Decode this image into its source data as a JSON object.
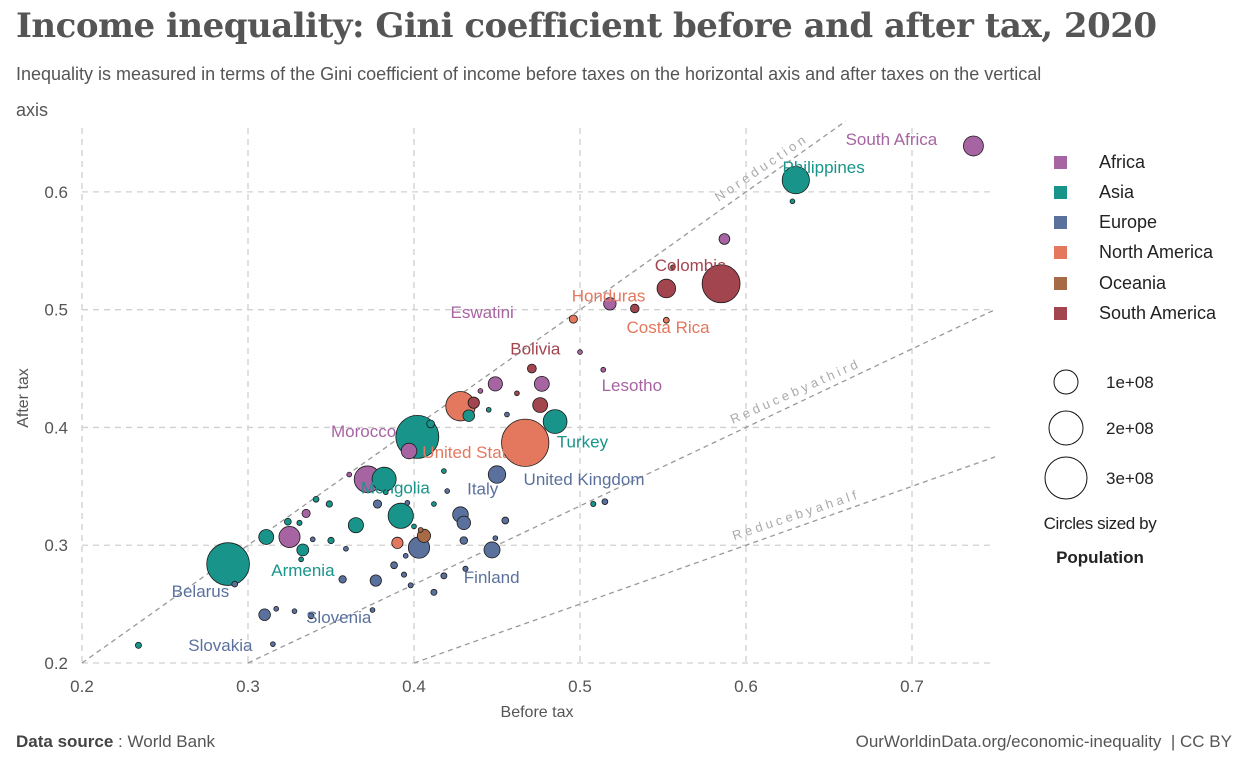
{
  "title": "Income inequality: Gini coefficient before and after tax, 2020",
  "subtitle": "Inequality is measured in terms of the Gini coefficient of income before taxes on the horizontal axis and after taxes on the vertical axis",
  "footer": {
    "source_label": "Data source",
    "source_sep": " : ",
    "source_value": "World Bank",
    "url": "OurWorldinData.org/economic-inequality",
    "sep": "|",
    "license": "CC BY"
  },
  "legend": {
    "regions": [
      "Africa",
      "Asia",
      "Europe",
      "North America",
      "Oceania",
      "South America"
    ],
    "size_values": [
      "1e+08",
      "2e+08",
      "3e+08"
    ],
    "size_title": "Circles sized by",
    "size_title_bold": "Population"
  },
  "chart_data": {
    "type": "scatter",
    "xlabel": "Before tax",
    "ylabel": "After tax",
    "xlim": [
      0.2,
      0.75
    ],
    "ylim": [
      0.2,
      0.65
    ],
    "x_ticks": [
      "0.2",
      "0.3",
      "0.4",
      "0.5",
      "0.6",
      "0.7"
    ],
    "y_ticks": [
      "0.2",
      "0.3",
      "0.4",
      "0.5",
      "0.6"
    ],
    "grid": true,
    "legend_position": "right",
    "colors": {
      "Africa": "#a764a3",
      "Asia": "#18948a",
      "Europe": "#5b719d",
      "North America": "#e3785f",
      "Oceania": "#a76a47",
      "South America": "#a2454f"
    },
    "reference_lines": [
      {
        "label": "N o   r e d u c t i o n",
        "slope": 1.0
      },
      {
        "label": "R e d u c e   b y   a   t h i r d",
        "slope": 0.6667
      },
      {
        "label": "R e d u c e   b y   a   h a l f",
        "slope": 0.5
      }
    ],
    "labels": [
      {
        "text": "South Africa",
        "region": "Africa",
        "x": 0.66,
        "y": 0.64
      },
      {
        "text": "Philippines",
        "region": "Asia",
        "x": 0.622,
        "y": 0.616
      },
      {
        "text": "Colombia",
        "region": "South America",
        "x": 0.545,
        "y": 0.533
      },
      {
        "text": "Honduras",
        "region": "North America",
        "x": 0.495,
        "y": 0.507
      },
      {
        "text": "Eswatini",
        "region": "Africa",
        "x": 0.422,
        "y": 0.493
      },
      {
        "text": "Costa Rica",
        "region": "North America",
        "x": 0.528,
        "y": 0.48
      },
      {
        "text": "Bolivia",
        "region": "South America",
        "x": 0.458,
        "y": 0.462
      },
      {
        "text": "Lesotho",
        "region": "Africa",
        "x": 0.513,
        "y": 0.431
      },
      {
        "text": "Morocco",
        "region": "Africa",
        "x": 0.35,
        "y": 0.392
      },
      {
        "text": "Turkey",
        "region": "Asia",
        "x": 0.486,
        "y": 0.383
      },
      {
        "text": "United States",
        "region": "North America",
        "x": 0.405,
        "y": 0.374
      },
      {
        "text": "United Kingdom",
        "region": "Europe",
        "x": 0.466,
        "y": 0.351
      },
      {
        "text": "Mongolia",
        "region": "Asia",
        "x": 0.368,
        "y": 0.344
      },
      {
        "text": "Italy",
        "region": "Europe",
        "x": 0.432,
        "y": 0.343
      },
      {
        "text": "Armenia",
        "region": "Asia",
        "x": 0.314,
        "y": 0.274
      },
      {
        "text": "Finland",
        "region": "Europe",
        "x": 0.43,
        "y": 0.268
      },
      {
        "text": "Belarus",
        "region": "Europe",
        "x": 0.254,
        "y": 0.256
      },
      {
        "text": "Slovenia",
        "region": "Europe",
        "x": 0.335,
        "y": 0.234
      },
      {
        "text": "Slovakia",
        "region": "Europe",
        "x": 0.264,
        "y": 0.21
      }
    ],
    "points": [
      {
        "x": 0.737,
        "y": 0.639,
        "pop": 59000000,
        "region": "Africa"
      },
      {
        "x": 0.63,
        "y": 0.61,
        "pop": 110000000,
        "region": "Asia"
      },
      {
        "x": 0.628,
        "y": 0.592,
        "pop": 700000,
        "region": "Asia"
      },
      {
        "x": 0.587,
        "y": 0.56,
        "pop": 17000000,
        "region": "Africa"
      },
      {
        "x": 0.585,
        "y": 0.522,
        "pop": 213000000,
        "region": "South America"
      },
      {
        "x": 0.552,
        "y": 0.518,
        "pop": 51000000,
        "region": "South America"
      },
      {
        "x": 0.556,
        "y": 0.536,
        "pop": 500000,
        "region": "South America"
      },
      {
        "x": 0.518,
        "y": 0.505,
        "pop": 23000000,
        "region": "Africa"
      },
      {
        "x": 0.533,
        "y": 0.501,
        "pop": 11000000,
        "region": "South America"
      },
      {
        "x": 0.496,
        "y": 0.492,
        "pop": 9900000,
        "region": "North America"
      },
      {
        "x": 0.552,
        "y": 0.491,
        "pop": 5100000,
        "region": "North America"
      },
      {
        "x": 0.5,
        "y": 0.464,
        "pop": 1200000,
        "region": "Africa"
      },
      {
        "x": 0.471,
        "y": 0.45,
        "pop": 11700000,
        "region": "South America"
      },
      {
        "x": 0.514,
        "y": 0.449,
        "pop": 2100000,
        "region": "Africa"
      },
      {
        "x": 0.449,
        "y": 0.437,
        "pop": 30000000,
        "region": "Africa"
      },
      {
        "x": 0.477,
        "y": 0.437,
        "pop": 33000000,
        "region": "Africa"
      },
      {
        "x": 0.44,
        "y": 0.431,
        "pop": 3000000,
        "region": "Africa"
      },
      {
        "x": 0.462,
        "y": 0.429,
        "pop": 600000,
        "region": "South America"
      },
      {
        "x": 0.476,
        "y": 0.419,
        "pop": 33000000,
        "region": "South America"
      },
      {
        "x": 0.428,
        "y": 0.418,
        "pop": 128000000,
        "region": "North America"
      },
      {
        "x": 0.436,
        "y": 0.421,
        "pop": 19000000,
        "region": "South America"
      },
      {
        "x": 0.445,
        "y": 0.415,
        "pop": 900000,
        "region": "Asia"
      },
      {
        "x": 0.456,
        "y": 0.411,
        "pop": 1800000,
        "region": "Europe"
      },
      {
        "x": 0.433,
        "y": 0.41,
        "pop": 20000000,
        "region": "Asia"
      },
      {
        "x": 0.485,
        "y": 0.405,
        "pop": 84000000,
        "region": "Asia"
      },
      {
        "x": 0.402,
        "y": 0.392,
        "pop": 273000000,
        "region": "Asia"
      },
      {
        "x": 0.41,
        "y": 0.403,
        "pop": 9000000,
        "region": "Asia"
      },
      {
        "x": 0.467,
        "y": 0.387,
        "pop": 331000000,
        "region": "North America"
      },
      {
        "x": 0.397,
        "y": 0.38,
        "pop": 36000000,
        "region": "Africa"
      },
      {
        "x": 0.418,
        "y": 0.363,
        "pop": 2000000,
        "region": "Asia"
      },
      {
        "x": 0.372,
        "y": 0.356,
        "pop": 105000000,
        "region": "Africa"
      },
      {
        "x": 0.382,
        "y": 0.356,
        "pop": 86000000,
        "region": "Asia"
      },
      {
        "x": 0.361,
        "y": 0.36,
        "pop": 1500000,
        "region": "Africa"
      },
      {
        "x": 0.45,
        "y": 0.36,
        "pop": 45000000,
        "region": "Europe"
      },
      {
        "x": 0.383,
        "y": 0.345,
        "pop": 3300000,
        "region": "Asia"
      },
      {
        "x": 0.42,
        "y": 0.346,
        "pop": 1300000,
        "region": "Europe"
      },
      {
        "x": 0.341,
        "y": 0.339,
        "pop": 5000000,
        "region": "Asia"
      },
      {
        "x": 0.349,
        "y": 0.335,
        "pop": 6000000,
        "region": "Asia"
      },
      {
        "x": 0.378,
        "y": 0.335,
        "pop": 10000000,
        "region": "Europe"
      },
      {
        "x": 0.396,
        "y": 0.336,
        "pop": 2000000,
        "region": "Europe"
      },
      {
        "x": 0.412,
        "y": 0.335,
        "pop": 2700000,
        "region": "Asia"
      },
      {
        "x": 0.508,
        "y": 0.335,
        "pop": 4000000,
        "region": "Asia"
      },
      {
        "x": 0.515,
        "y": 0.337,
        "pop": 5000000,
        "region": "Europe"
      },
      {
        "x": 0.335,
        "y": 0.327,
        "pop": 10000000,
        "region": "Africa"
      },
      {
        "x": 0.428,
        "y": 0.326,
        "pop": 36000000,
        "region": "Europe"
      },
      {
        "x": 0.392,
        "y": 0.325,
        "pop": 94000000,
        "region": "Asia"
      },
      {
        "x": 0.324,
        "y": 0.32,
        "pop": 7000000,
        "region": "Asia"
      },
      {
        "x": 0.331,
        "y": 0.319,
        "pop": 4000000,
        "region": "Asia"
      },
      {
        "x": 0.365,
        "y": 0.317,
        "pop": 34000000,
        "region": "Asia"
      },
      {
        "x": 0.43,
        "y": 0.319,
        "pop": 27000000,
        "region": "Europe"
      },
      {
        "x": 0.455,
        "y": 0.321,
        "pop": 7000000,
        "region": "Europe"
      },
      {
        "x": 0.4,
        "y": 0.316,
        "pop": 2000000,
        "region": "Asia"
      },
      {
        "x": 0.404,
        "y": 0.313,
        "pop": 3000000,
        "region": "Oceania"
      },
      {
        "x": 0.311,
        "y": 0.307,
        "pop": 33000000,
        "region": "Asia"
      },
      {
        "x": 0.325,
        "y": 0.307,
        "pop": 66000000,
        "region": "Africa"
      },
      {
        "x": 0.35,
        "y": 0.304,
        "pop": 6000000,
        "region": "Asia"
      },
      {
        "x": 0.339,
        "y": 0.305,
        "pop": 1800000,
        "region": "Europe"
      },
      {
        "x": 0.39,
        "y": 0.302,
        "pop": 19000000,
        "region": "North America"
      },
      {
        "x": 0.406,
        "y": 0.308,
        "pop": 26000000,
        "region": "Oceania"
      },
      {
        "x": 0.43,
        "y": 0.304,
        "pop": 8500000,
        "region": "Europe"
      },
      {
        "x": 0.449,
        "y": 0.306,
        "pop": 1300000,
        "region": "Europe"
      },
      {
        "x": 0.403,
        "y": 0.298,
        "pop": 67000000,
        "region": "Europe"
      },
      {
        "x": 0.333,
        "y": 0.296,
        "pop": 21000000,
        "region": "Asia"
      },
      {
        "x": 0.359,
        "y": 0.297,
        "pop": 3000000,
        "region": "Europe"
      },
      {
        "x": 0.395,
        "y": 0.291,
        "pop": 1500000,
        "region": "Europe"
      },
      {
        "x": 0.447,
        "y": 0.296,
        "pop": 38000000,
        "region": "Europe"
      },
      {
        "x": 0.332,
        "y": 0.288,
        "pop": 1300000,
        "region": "Asia"
      },
      {
        "x": 0.288,
        "y": 0.284,
        "pop": 270000000,
        "region": "Asia"
      },
      {
        "x": 0.388,
        "y": 0.283,
        "pop": 7000000,
        "region": "Europe"
      },
      {
        "x": 0.431,
        "y": 0.28,
        "pop": 4000000,
        "region": "Europe"
      },
      {
        "x": 0.394,
        "y": 0.275,
        "pop": 4000000,
        "region": "Europe"
      },
      {
        "x": 0.418,
        "y": 0.274,
        "pop": 5500000,
        "region": "Europe"
      },
      {
        "x": 0.357,
        "y": 0.271,
        "pop": 8000000,
        "region": "Europe"
      },
      {
        "x": 0.377,
        "y": 0.27,
        "pop": 19000000,
        "region": "Europe"
      },
      {
        "x": 0.398,
        "y": 0.266,
        "pop": 3800000,
        "region": "Europe"
      },
      {
        "x": 0.292,
        "y": 0.267,
        "pop": 5000000,
        "region": "Europe"
      },
      {
        "x": 0.412,
        "y": 0.26,
        "pop": 5500000,
        "region": "Europe"
      },
      {
        "x": 0.31,
        "y": 0.241,
        "pop": 20000000,
        "region": "Europe"
      },
      {
        "x": 0.317,
        "y": 0.246,
        "pop": 500000,
        "region": "Europe"
      },
      {
        "x": 0.338,
        "y": 0.24,
        "pop": 5000000,
        "region": "Europe"
      },
      {
        "x": 0.328,
        "y": 0.244,
        "pop": 600000,
        "region": "Europe"
      },
      {
        "x": 0.375,
        "y": 0.245,
        "pop": 1000000,
        "region": "Europe"
      },
      {
        "x": 0.315,
        "y": 0.216,
        "pop": 2100000,
        "region": "Europe"
      },
      {
        "x": 0.234,
        "y": 0.215,
        "pop": 5500000,
        "region": "Asia"
      }
    ]
  }
}
